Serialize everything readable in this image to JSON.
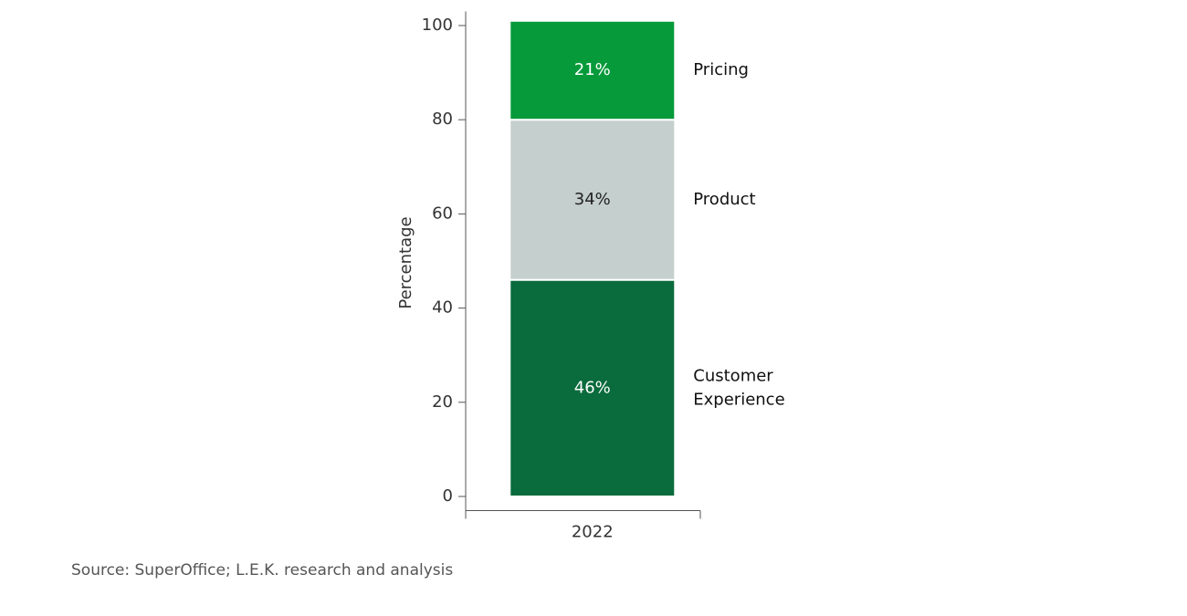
{
  "chart_data": {
    "type": "stacked_bar",
    "categories": [
      "2022"
    ],
    "series": [
      {
        "name": "Customer Experience",
        "color": "#0a6b3c",
        "values": [
          46
        ],
        "value_labels": [
          "46%"
        ]
      },
      {
        "name": "Product",
        "color": "#c5cfcd",
        "values": [
          34
        ],
        "value_labels": [
          "34%"
        ]
      },
      {
        "name": "Pricing",
        "color": "#069a3a",
        "values": [
          21
        ],
        "value_labels": [
          "21%"
        ]
      }
    ],
    "ylabel": "Percentage",
    "ylim": [
      -3,
      103
    ],
    "yticks": [
      0,
      20,
      40,
      60,
      80,
      100
    ],
    "source": "Source: SuperOffice; L.E.K. research and analysis"
  }
}
